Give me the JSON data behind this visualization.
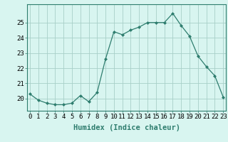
{
  "x": [
    0,
    1,
    2,
    3,
    4,
    5,
    6,
    7,
    8,
    9,
    10,
    11,
    12,
    13,
    14,
    15,
    16,
    17,
    18,
    19,
    20,
    21,
    22,
    23
  ],
  "y": [
    20.3,
    19.9,
    19.7,
    19.6,
    19.6,
    19.7,
    20.2,
    19.8,
    20.4,
    22.6,
    24.4,
    24.2,
    24.5,
    24.7,
    25.0,
    25.0,
    25.0,
    25.6,
    24.8,
    24.1,
    22.8,
    22.1,
    21.5,
    20.1
  ],
  "line_color": "#2e7d6e",
  "marker": "D",
  "marker_size": 2.0,
  "bg_color": "#d8f5f0",
  "grid_color": "#a8cfc8",
  "xlabel": "Humidex (Indice chaleur)",
  "xlabel_fontsize": 7.5,
  "tick_fontsize": 6.5,
  "ylim": [
    19.2,
    26.2
  ],
  "yticks": [
    20,
    21,
    22,
    23,
    24,
    25
  ],
  "xticks": [
    0,
    1,
    2,
    3,
    4,
    5,
    6,
    7,
    8,
    9,
    10,
    11,
    12,
    13,
    14,
    15,
    16,
    17,
    18,
    19,
    20,
    21,
    22,
    23
  ],
  "xlim": [
    -0.3,
    23.3
  ]
}
